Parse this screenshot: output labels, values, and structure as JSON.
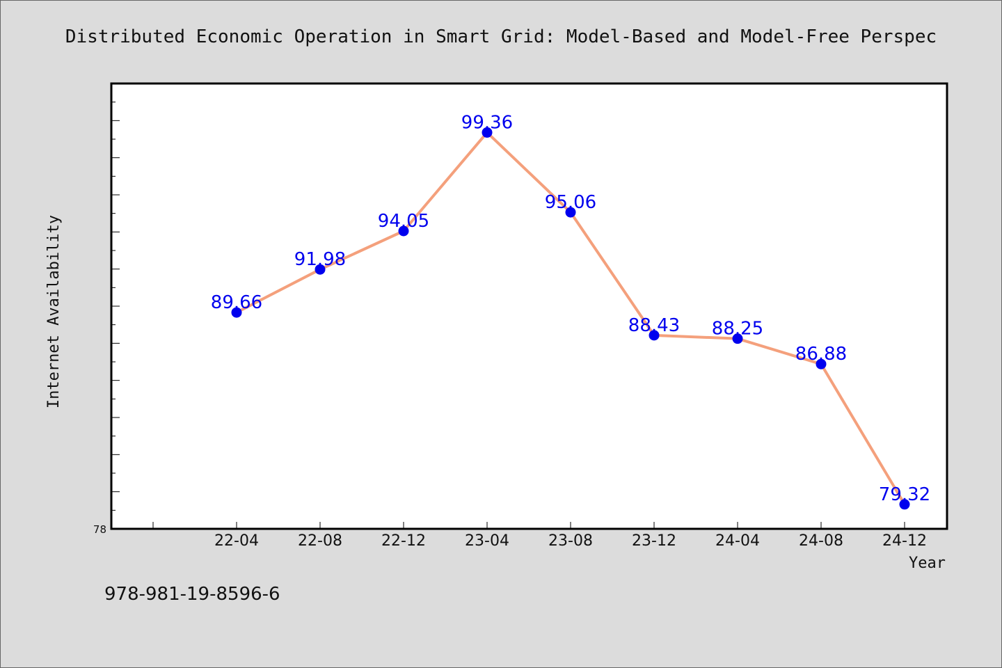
{
  "chart_data": {
    "type": "line",
    "title": "Distributed Economic Operation in Smart Grid: Model-Based and Model-Free Perspec",
    "xlabel": "Year",
    "ylabel": "Internet Availability",
    "categories": [
      "22-04",
      "22-08",
      "22-12",
      "23-04",
      "23-08",
      "23-12",
      "24-04",
      "24-08",
      "24-12"
    ],
    "series": [
      {
        "values": [
          89.66,
          91.98,
          94.05,
          99.36,
          95.06,
          88.43,
          88.25,
          86.88,
          79.32
        ]
      }
    ],
    "ylim": [
      78,
      102
    ],
    "y_min_label": "78",
    "grid": false,
    "line_color": "#f4a07c",
    "marker_color": "#0000ee",
    "label_color": "#0000ee",
    "frame_color": "#000000",
    "background": "#ffffff"
  },
  "footer": "978-981-19-8596-6"
}
